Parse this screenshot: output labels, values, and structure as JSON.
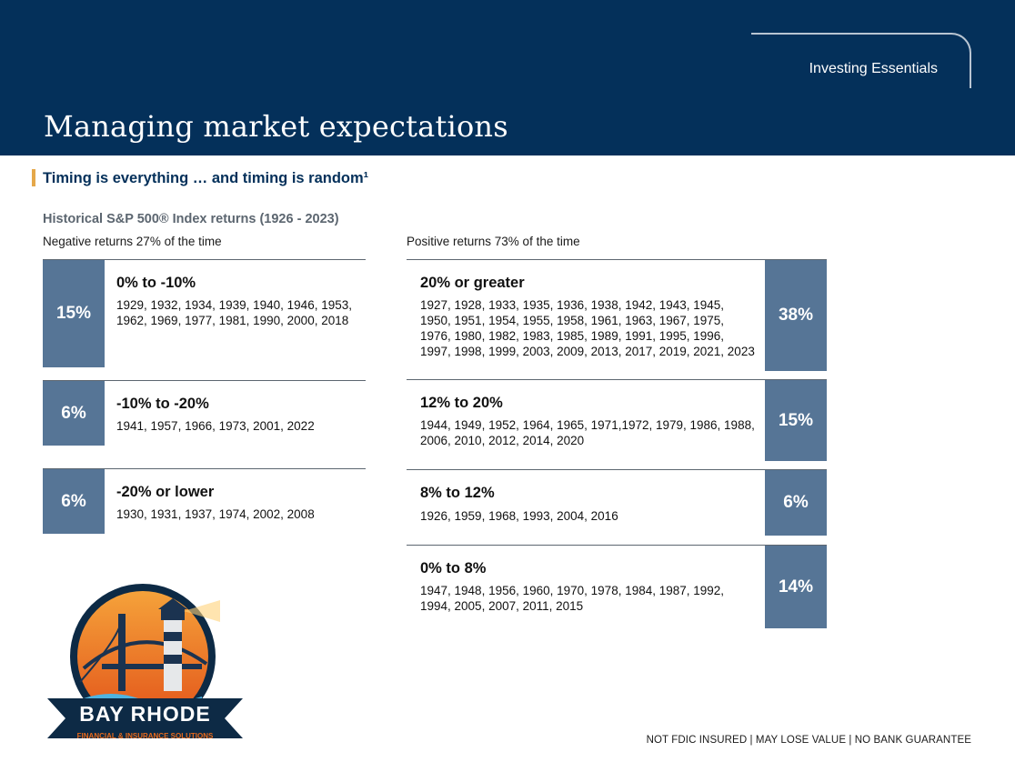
{
  "header": {
    "tab_label": "Investing Essentials",
    "title": "Managing market expectations"
  },
  "subtitle": "Timing is everything … and timing is random¹",
  "chart_title": "Historical S&P 500® Index returns (1926 - 2023)",
  "negative": {
    "caption": "Negative returns 27% of the time",
    "bands": [
      {
        "pct": "15%",
        "range": "0% to -10%",
        "years": "1929, 1932, 1934, 1939, 1940, 1946, 1953, 1962, 1969, 1977, 1981, 1990, 2000, 2018"
      },
      {
        "pct": "6%",
        "range": "-10% to -20%",
        "years": "1941, 1957, 1966, 1973, 2001, 2022"
      },
      {
        "pct": "6%",
        "range": "-20% or lower",
        "years": "1930, 1931, 1937, 1974, 2002, 2008"
      }
    ]
  },
  "positive": {
    "caption": "Positive returns 73% of the time",
    "bands": [
      {
        "pct": "38%",
        "range": "20% or greater",
        "years": "1927, 1928, 1933, 1935, 1936, 1938, 1942, 1943, 1945, 1950, 1951, 1954, 1955, 1958, 1961, 1963, 1967, 1975, 1976, 1980, 1982, 1983, 1985, 1989, 1991, 1995, 1996, 1997, 1998, 1999, 2003, 2009, 2013, 2017, 2019, 2021, 2023"
      },
      {
        "pct": "15%",
        "range": "12% to 20%",
        "years": "1944, 1949, 1952, 1964, 1965, 1971,1972, 1979, 1986, 1988, 2006, 2010, 2012, 2014, 2020"
      },
      {
        "pct": "6%",
        "range": "8% to 12%",
        "years": "1926, 1959, 1968, 1993, 2004, 2016"
      },
      {
        "pct": "14%",
        "range": "0% to 8%",
        "years": "1947, 1948, 1956, 1960, 1970, 1978, 1984, 1987, 1992, 1994, 2005, 2007, 2011, 2015"
      }
    ]
  },
  "logo": {
    "name": "BAY RHODE",
    "tagline": "FINANCIAL & INSURANCE SOLUTIONS"
  },
  "disclaimer": "NOT FDIC INSURED  |  MAY LOSE VALUE  |  NO BANK GUARANTEE",
  "colors": {
    "navy": "#04305a",
    "slate_blue": "#567596",
    "gold_accent": "#e5a84a",
    "logo_orange": "#e86a1c"
  }
}
